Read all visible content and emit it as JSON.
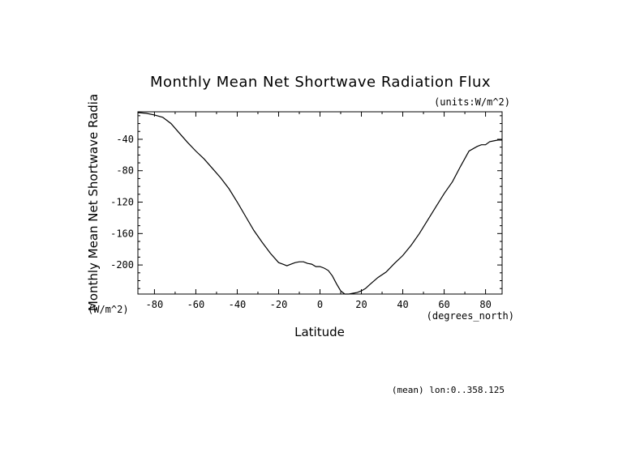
{
  "chart_data": {
    "type": "line",
    "title": "Monthly Mean Net Shortwave Radiation Flux",
    "units_label": "(units:W/m^2)",
    "xlabel": "Latitude",
    "x_units": "(degrees_north)",
    "ylabel": "Monthly Mean Net Shortwave Radia",
    "y_units": "(W/m^2)",
    "footnote": "(mean) lon:0..358.125",
    "xlim": [
      -88,
      88
    ],
    "ylim": [
      -237,
      -5
    ],
    "x_ticks": [
      -80,
      -60,
      -40,
      -20,
      0,
      20,
      40,
      60,
      80
    ],
    "x_tick_labels": [
      "-80",
      "-60",
      "-40",
      "-20",
      "0",
      "20",
      "40",
      "60",
      "80"
    ],
    "y_ticks": [
      -40,
      -80,
      -120,
      -160,
      -200
    ],
    "y_tick_labels": [
      "-40",
      "-80",
      "-120",
      "-160",
      "-200"
    ],
    "series": [
      {
        "name": "Net Shortwave Radiation Flux",
        "x": [
          -88,
          -84,
          -80,
          -76,
          -72,
          -68,
          -64,
          -60,
          -56,
          -52,
          -48,
          -44,
          -40,
          -36,
          -32,
          -28,
          -24,
          -20,
          -18,
          -16,
          -14,
          -12,
          -10,
          -8,
          -6,
          -4,
          -2,
          0,
          2,
          4,
          6,
          8,
          10,
          12,
          14,
          16,
          18,
          20,
          22,
          24,
          28,
          32,
          36,
          40,
          44,
          48,
          52,
          56,
          60,
          64,
          68,
          72,
          76,
          78,
          80,
          82,
          84,
          86,
          88
        ],
        "y": [
          -6,
          -7,
          -9,
          -12,
          -20,
          -32,
          -44,
          -55,
          -65,
          -77,
          -89,
          -103,
          -120,
          -138,
          -156,
          -171,
          -185,
          -197,
          -199,
          -201,
          -199,
          -197,
          -196,
          -196,
          -198,
          -199,
          -202,
          -202,
          -204,
          -207,
          -214,
          -224,
          -233,
          -237,
          -237,
          -236,
          -235,
          -233,
          -230,
          -225,
          -216,
          -209,
          -198,
          -188,
          -175,
          -160,
          -143,
          -126,
          -109,
          -94,
          -74,
          -55,
          -49,
          -47,
          -47,
          -43,
          -42,
          -41,
          -41
        ]
      }
    ]
  }
}
